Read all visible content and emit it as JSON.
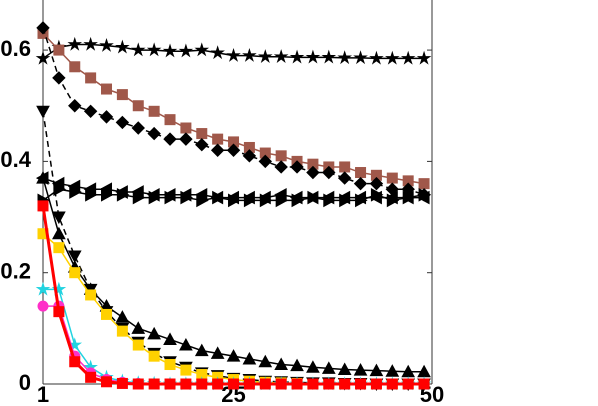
{
  "chart_data": {
    "type": "line",
    "x": [
      1,
      3,
      5,
      7,
      9,
      11,
      13,
      15,
      17,
      19,
      21,
      23,
      25,
      27,
      29,
      31,
      33,
      35,
      37,
      39,
      41,
      43,
      45,
      47,
      49
    ],
    "xlim": [
      1,
      50
    ],
    "xticks": [
      1,
      25,
      50
    ],
    "ylim": [
      0,
      0.69
    ],
    "yticks": [
      0,
      0.2,
      0.4,
      0.6
    ],
    "series": [
      {
        "color": "#000000",
        "marker": "star",
        "dash": false,
        "values": [
          0.585,
          0.605,
          0.61,
          0.61,
          0.608,
          0.605,
          0.6,
          0.6,
          0.598,
          0.598,
          0.6,
          0.595,
          0.59,
          0.59,
          0.588,
          0.588,
          0.587,
          0.587,
          0.587,
          0.586,
          0.586,
          0.585,
          0.585,
          0.585,
          0.585
        ]
      },
      {
        "color": "#a0584a",
        "marker": "plus-square",
        "dash": false,
        "values": [
          0.63,
          0.6,
          0.57,
          0.55,
          0.53,
          0.52,
          0.5,
          0.49,
          0.475,
          0.46,
          0.45,
          0.44,
          0.435,
          0.425,
          0.415,
          0.41,
          0.4,
          0.395,
          0.39,
          0.39,
          0.38,
          0.375,
          0.37,
          0.365,
          0.36
        ]
      },
      {
        "color": "#000000",
        "marker": "diamond",
        "dash": true,
        "values": [
          0.64,
          0.55,
          0.5,
          0.49,
          0.48,
          0.47,
          0.46,
          0.45,
          0.44,
          0.44,
          0.43,
          0.42,
          0.42,
          0.41,
          0.4,
          0.39,
          0.39,
          0.38,
          0.38,
          0.37,
          0.36,
          0.36,
          0.35,
          0.35,
          0.34
        ]
      },
      {
        "color": "#000000",
        "marker": "left",
        "dash": false,
        "values": [
          0.37,
          0.36,
          0.355,
          0.35,
          0.35,
          0.345,
          0.345,
          0.34,
          0.34,
          0.34,
          0.34,
          0.335,
          0.335,
          0.335,
          0.335,
          0.34,
          0.335,
          0.335,
          0.335,
          0.335,
          0.335,
          0.335,
          0.335,
          0.335,
          0.335
        ]
      },
      {
        "color": "#000000",
        "marker": "right",
        "dash": false,
        "values": [
          0.33,
          0.35,
          0.345,
          0.34,
          0.34,
          0.34,
          0.335,
          0.335,
          0.335,
          0.335,
          0.33,
          0.335,
          0.33,
          0.33,
          0.33,
          0.33,
          0.33,
          0.335,
          0.33,
          0.33,
          0.33,
          0.34,
          0.33,
          0.335,
          0.34
        ]
      },
      {
        "color": "#000000",
        "marker": "down",
        "dash": true,
        "values": [
          0.49,
          0.3,
          0.23,
          0.17,
          0.13,
          0.1,
          0.075,
          0.055,
          0.04,
          0.03,
          0.02,
          0.015,
          0.01,
          0.008,
          0.005,
          0.004,
          0.003,
          0.002,
          0.002,
          0.001,
          0.001,
          0,
          0,
          0,
          0
        ]
      },
      {
        "color": "#000000",
        "marker": "up",
        "dash": false,
        "values": [
          0.37,
          0.27,
          0.21,
          0.17,
          0.14,
          0.12,
          0.1,
          0.09,
          0.08,
          0.07,
          0.06,
          0.055,
          0.05,
          0.045,
          0.04,
          0.035,
          0.033,
          0.03,
          0.028,
          0.026,
          0.025,
          0.024,
          0.023,
          0.022,
          0.022
        ]
      },
      {
        "color": "#ffd100",
        "marker": "square",
        "dash": false,
        "values": [
          0.27,
          0.245,
          0.2,
          0.16,
          0.125,
          0.095,
          0.07,
          0.05,
          0.035,
          0.025,
          0.017,
          0.012,
          0.008,
          0.005,
          0.003,
          0.002,
          0.001,
          0,
          0,
          0,
          0,
          0,
          0,
          0,
          0
        ]
      },
      {
        "color": "#22d3e0",
        "marker": "star",
        "dash": false,
        "values": [
          0.17,
          0.17,
          0.07,
          0.03,
          0.012,
          0.005,
          0.002,
          0.001,
          0,
          0,
          0,
          0,
          0,
          0,
          0,
          0,
          0,
          0,
          0,
          0,
          0,
          0,
          0,
          0,
          0
        ]
      },
      {
        "color": "#ff2fc8",
        "marker": "circle",
        "dash": false,
        "values": [
          0.14,
          0.14,
          0.05,
          0.02,
          0.008,
          0.003,
          0.001,
          0,
          0,
          0,
          0,
          0,
          0,
          0,
          0,
          0,
          0,
          0,
          0,
          0,
          0,
          0,
          0,
          0,
          0
        ]
      },
      {
        "color": "#ff0000",
        "marker": "square",
        "dash": false,
        "values": [
          0.32,
          0.13,
          0.04,
          0.012,
          0.004,
          0.001,
          0,
          0,
          0,
          0,
          0,
          0,
          0,
          0,
          0,
          0,
          0,
          0,
          0,
          0,
          0,
          0,
          0,
          0,
          0
        ]
      }
    ]
  }
}
